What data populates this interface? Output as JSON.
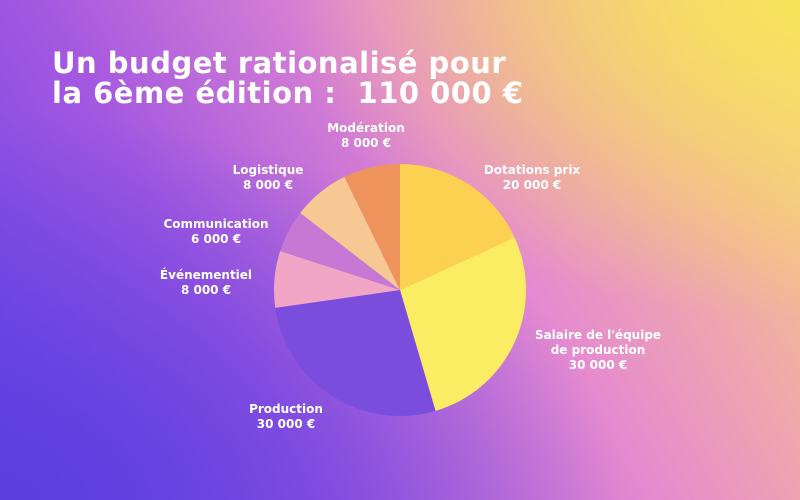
{
  "title_lines": [
    "Un budget rationalisé pour",
    "la 6ème édition :  110 000 €"
  ],
  "chart_data": {
    "type": "pie",
    "start": "top",
    "direction": "clockwise",
    "slices": [
      {
        "label": "Dotations prix",
        "value_text": "20 000 €",
        "value": 20000,
        "color": "#fcd152"
      },
      {
        "label": "Salaire de l'équipe de production",
        "value_text": "30 000 €",
        "value": 30000,
        "color": "#faed64"
      },
      {
        "label": "Production",
        "value_text": "30 000 €",
        "value": 30000,
        "color": "#7b4ddd"
      },
      {
        "label": "Événementiel",
        "value_text": "8 000 €",
        "value": 8000,
        "color": "#f0a6c4"
      },
      {
        "label": "Communication",
        "value_text": "6 000 €",
        "value": 6000,
        "color": "#c678d4"
      },
      {
        "label": "Logistique",
        "value_text": "8 000 €",
        "value": 8000,
        "color": "#f7c894"
      },
      {
        "label": "Modération",
        "value_text": "8 000 €",
        "value": 8000,
        "color": "#ef935d"
      }
    ]
  }
}
